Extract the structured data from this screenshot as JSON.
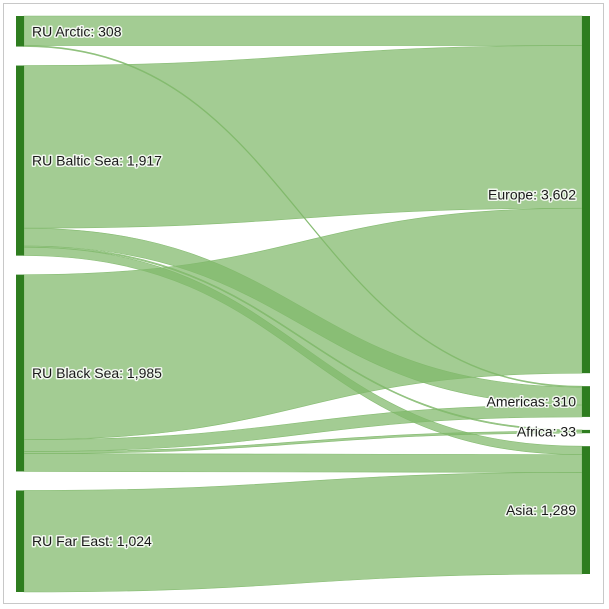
{
  "chart_data": {
    "type": "sankey",
    "colors": {
      "node": "#2e7d1f",
      "link": "#80b86a"
    },
    "sources": [
      {
        "id": "arctic",
        "label": "RU Arctic: 308",
        "value": 308
      },
      {
        "id": "baltic",
        "label": "RU Baltic Sea: 1,917",
        "value": 1917
      },
      {
        "id": "black",
        "label": "RU Black Sea: 1,985",
        "value": 1985
      },
      {
        "id": "fareast",
        "label": "RU Far East: 1,024",
        "value": 1024
      }
    ],
    "targets": [
      {
        "id": "europe",
        "label": "Europe: 3,602",
        "value": 3602
      },
      {
        "id": "americas",
        "label": "Americas: 310",
        "value": 310
      },
      {
        "id": "africa",
        "label": "Africa: 33",
        "value": 33
      },
      {
        "id": "asia",
        "label": "Asia: 1,289",
        "value": 1289
      }
    ],
    "links": [
      {
        "source": "arctic",
        "target": "europe",
        "value": 298
      },
      {
        "source": "arctic",
        "target": "americas",
        "value": 10
      },
      {
        "source": "baltic",
        "target": "europe",
        "value": 1640
      },
      {
        "source": "baltic",
        "target": "americas",
        "value": 180
      },
      {
        "source": "baltic",
        "target": "africa",
        "value": 12
      },
      {
        "source": "baltic",
        "target": "asia",
        "value": 85
      },
      {
        "source": "black",
        "target": "europe",
        "value": 1664
      },
      {
        "source": "black",
        "target": "americas",
        "value": 120
      },
      {
        "source": "black",
        "target": "africa",
        "value": 21
      },
      {
        "source": "black",
        "target": "asia",
        "value": 180
      },
      {
        "source": "fareast",
        "target": "asia",
        "value": 1024
      }
    ]
  }
}
